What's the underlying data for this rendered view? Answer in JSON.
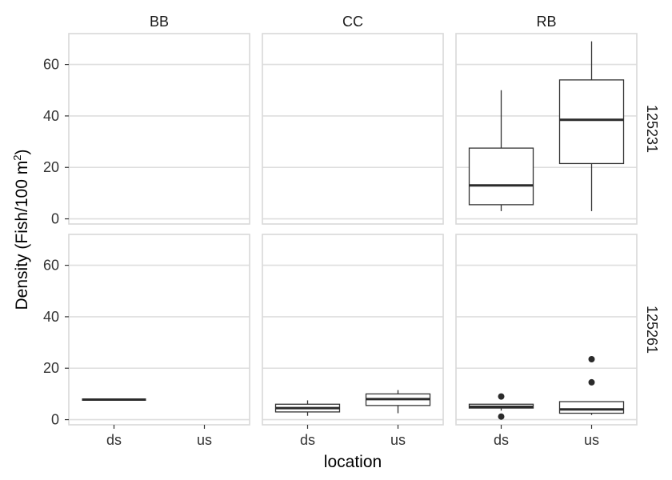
{
  "chart_data": {
    "type": "boxplot",
    "xlabel": "location",
    "ylabel": "Density (Fish/100 m",
    "ylabel_superscript": "2",
    "ylabel_close": ")",
    "x_categories": [
      "ds",
      "us"
    ],
    "y_ticks": [
      0,
      20,
      40,
      60
    ],
    "ylim": [
      -2,
      72
    ],
    "grid": true,
    "facet_columns": [
      "BB",
      "CC",
      "RB"
    ],
    "facet_rows": [
      "125231",
      "125261"
    ],
    "colors": {
      "panel_border": "#d9d9d9",
      "grid": "#dedede",
      "box_line": "#333333",
      "median": "#2b2b2b",
      "outlier": "#2b2b2b"
    },
    "panels": [
      {
        "row": "125231",
        "col": "BB",
        "boxes": []
      },
      {
        "row": "125231",
        "col": "CC",
        "boxes": []
      },
      {
        "row": "125231",
        "col": "RB",
        "boxes": [
          {
            "x": "ds",
            "min": 3,
            "q1": 5.5,
            "median": 13,
            "q3": 27.5,
            "max": 50,
            "outliers": []
          },
          {
            "x": "us",
            "min": 3,
            "q1": 21.5,
            "median": 38.5,
            "q3": 54,
            "max": 69,
            "outliers": []
          }
        ]
      },
      {
        "row": "125261",
        "col": "BB",
        "boxes": [
          {
            "x": "ds",
            "min": 7.8,
            "q1": 7.8,
            "median": 7.8,
            "q3": 7.8,
            "max": 7.8,
            "outliers": []
          }
        ]
      },
      {
        "row": "125261",
        "col": "CC",
        "boxes": [
          {
            "x": "ds",
            "min": 1.5,
            "q1": 3,
            "median": 4.5,
            "q3": 6,
            "max": 7.5,
            "outliers": []
          },
          {
            "x": "us",
            "min": 2.5,
            "q1": 5.5,
            "median": 8,
            "q3": 10,
            "max": 11.5,
            "outliers": []
          }
        ]
      },
      {
        "row": "125261",
        "col": "RB",
        "boxes": [
          {
            "x": "ds",
            "min": 3.5,
            "q1": 4.5,
            "median": 5,
            "q3": 6,
            "max": 6,
            "outliers": [
              1.2,
              9
            ]
          },
          {
            "x": "us",
            "min": 1.8,
            "q1": 2.5,
            "median": 4,
            "q3": 7,
            "max": 7,
            "outliers": [
              14.5,
              23.5
            ]
          }
        ]
      }
    ]
  }
}
